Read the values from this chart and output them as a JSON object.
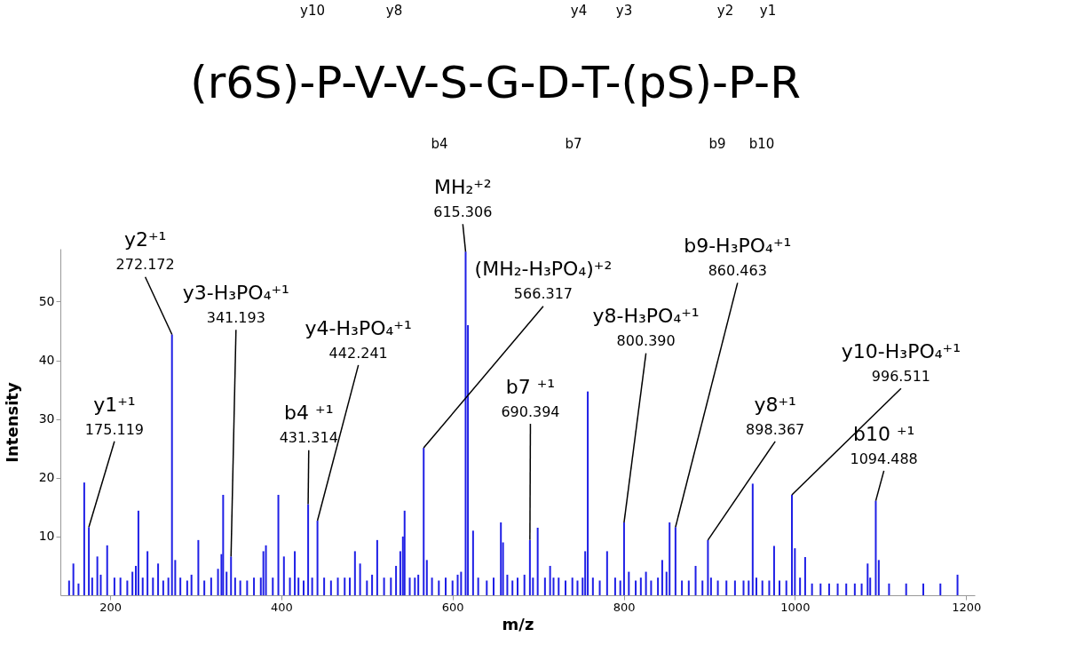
{
  "chart_data": {
    "type": "bar",
    "xlabel": "m/z",
    "ylabel": "Intensity",
    "x": [
      152,
      157,
      163,
      169.7,
      175.1,
      179,
      185,
      189,
      196.5,
      205,
      212,
      220,
      226,
      230,
      233,
      238,
      243.6,
      250,
      256,
      262,
      268,
      272.2,
      276,
      282,
      290,
      295,
      303,
      310,
      318,
      326,
      330,
      332,
      336,
      341.2,
      346,
      352,
      360,
      368,
      376,
      379,
      382,
      390,
      396.5,
      403,
      410,
      415.7,
      420,
      426,
      431.3,
      436,
      442.2,
      450,
      458,
      466,
      474,
      480,
      486,
      492,
      500,
      506,
      512,
      520,
      528,
      534,
      539,
      542,
      544,
      550,
      556,
      560,
      566.3,
      570,
      576,
      584,
      592,
      600,
      606,
      610,
      615.3,
      618,
      624,
      630,
      640,
      648,
      656.5,
      659,
      664,
      670,
      676,
      684,
      690.4,
      694,
      699.5,
      708,
      714,
      718,
      724,
      732,
      740,
      746,
      752,
      755,
      758,
      764,
      772,
      780.6,
      790,
      796,
      800.4,
      806,
      814,
      820,
      826,
      832,
      840,
      845,
      850,
      853.6,
      860.5,
      868,
      876,
      884,
      892,
      898.4,
      902,
      910,
      920,
      930,
      940,
      946,
      950.7,
      955,
      962,
      970,
      975.7,
      982,
      990,
      996.5,
      1000,
      1006,
      1012,
      1020,
      1030,
      1040,
      1050,
      1060,
      1070,
      1078,
      1085,
      1088,
      1094.5,
      1098,
      1110,
      1130,
      1150,
      1170,
      1190
    ],
    "values": [
      2.5,
      5.4,
      2,
      19.2,
      11.6,
      3,
      6.6,
      3.5,
      8.5,
      3,
      3,
      2.5,
      4,
      5,
      14.4,
      3,
      7.5,
      3,
      5.4,
      2.5,
      3,
      44.4,
      6,
      3,
      2.5,
      3.5,
      9.4,
      2.5,
      3,
      4.5,
      7,
      17.1,
      4,
      6.6,
      3,
      2.5,
      2.5,
      3,
      3,
      7.5,
      8.5,
      3,
      17.1,
      6.6,
      3,
      7.5,
      3,
      2.5,
      15.5,
      3,
      12.7,
      3,
      2.5,
      3,
      3,
      3,
      7.5,
      5.4,
      2.5,
      3.5,
      9.4,
      3,
      3,
      5,
      7.5,
      10,
      14.4,
      3,
      3,
      3.5,
      25.1,
      6,
      3,
      2.5,
      3,
      2.5,
      3.5,
      4,
      58.5,
      46,
      11,
      3,
      2.5,
      3,
      12.4,
      9,
      3.5,
      2.5,
      3,
      3.5,
      9.4,
      3,
      11.5,
      3,
      5,
      3,
      3,
      2.5,
      3,
      2.5,
      3,
      7.5,
      34.7,
      3,
      2.5,
      7.5,
      3,
      2.5,
      12.4,
      4,
      2.5,
      3,
      4,
      2.5,
      3,
      6,
      4,
      12.4,
      11.6,
      2.5,
      2.5,
      5,
      2.5,
      9.4,
      3,
      2.5,
      2.5,
      2.5,
      2.5,
      2.5,
      19,
      3,
      2.5,
      2.5,
      8.4,
      2.5,
      2.5,
      17.1,
      8,
      3,
      6.5,
      2,
      2,
      2,
      2,
      2,
      2,
      2,
      5.4,
      3,
      16.1,
      6,
      2,
      2,
      2,
      2,
      3.5
    ],
    "color": "#1f1fe6",
    "xlim": [
      147,
      1205
    ],
    "ylim": [
      0,
      59
    ],
    "xticks": [
      200,
      400,
      600,
      800,
      1000,
      1200
    ],
    "yticks": [
      10,
      20,
      30,
      40,
      50
    ],
    "grid": false,
    "annotations": [
      {
        "text": "(r6S)-P-V-V-S-G-D-T-(pS)-P-R"
      },
      {
        "text": "y10"
      },
      {
        "text": "y8"
      },
      {
        "text": "y4"
      },
      {
        "text": "y3"
      },
      {
        "text": "y2"
      },
      {
        "text": "y1"
      },
      {
        "text": "b4"
      },
      {
        "text": "b7"
      },
      {
        "text": "b9"
      },
      {
        "text": "b10"
      },
      "y1⁺¹",
      {
        "text": "175.119",
        "x": 175.1,
        "y": 11.6
      },
      "y2⁺¹",
      {
        "text": "272.172",
        "x": 272.2,
        "y": 44.4
      },
      "y3-H₃PO₄⁺¹",
      {
        "text": "341.193",
        "x": 341.2,
        "y": 6.6
      },
      "b4 ⁺¹",
      {
        "text": "431.314",
        "x": 431.3,
        "y": 15.5
      },
      "y4-H₃PO₄⁺¹",
      {
        "text": "442.241",
        "x": 442.2,
        "y": 12.7
      },
      "(MH₂-H₃PO₄)⁺²",
      {
        "text": "566.317",
        "x": 566.3,
        "y": 25.1
      },
      "MH₂⁺²",
      {
        "text": "615.306",
        "x": 615.3,
        "y": 58.5
      },
      "b7 ⁺¹",
      {
        "text": "690.394",
        "x": 690.4,
        "y": 9.4
      },
      "y8-H₃PO₄⁺¹",
      {
        "text": "800.390",
        "x": 800.4,
        "y": 12.4
      },
      "b9-H₃PO₄⁺¹",
      {
        "text": "860.463",
        "x": 860.5,
        "y": 11.6
      },
      "y8⁺¹",
      {
        "text": "898.367",
        "x": 898.4,
        "y": 9.4
      },
      "y10-H₃PO₄⁺¹",
      {
        "text": "996.511",
        "x": 996.5,
        "y": 17.1
      },
      "b10 ⁺¹",
      {
        "text": "1094.488",
        "x": 1094.5,
        "y": 16.1
      }
    ]
  }
}
